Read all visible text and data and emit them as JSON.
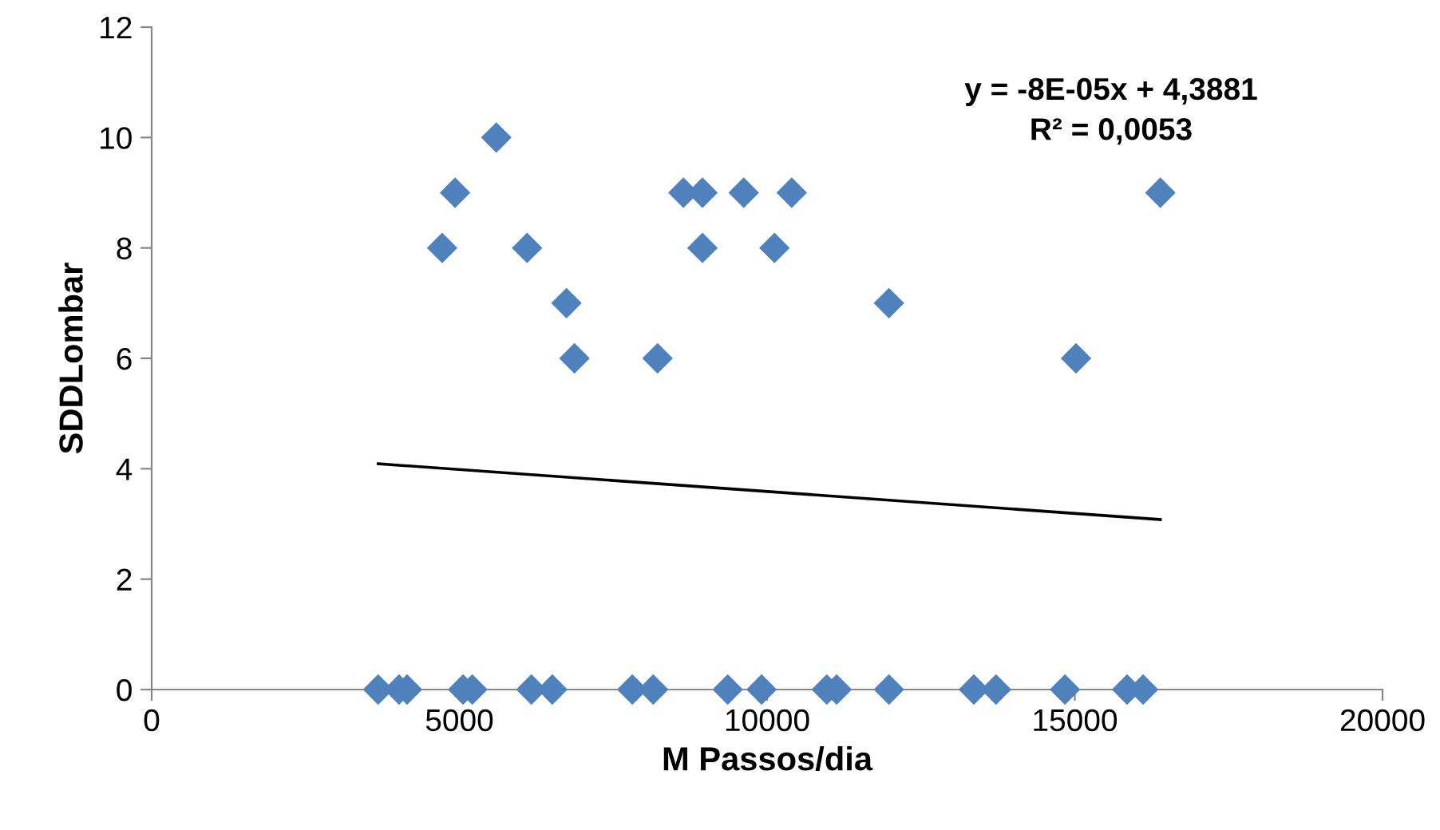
{
  "chart_data": {
    "type": "scatter",
    "xlabel": "M Passos/dia",
    "ylabel": "SDDLombar",
    "xlim": [
      0,
      20000
    ],
    "xticks": [
      0,
      5000,
      10000,
      15000,
      20000
    ],
    "ylim": [
      0,
      12
    ],
    "yticks": [
      0,
      2,
      4,
      6,
      8,
      10,
      12
    ],
    "grid": false,
    "legend": false,
    "series": [
      {
        "marker": "diamond",
        "color": "#4f81bd",
        "x": [
          4720,
          4930,
          5600,
          6100,
          6740,
          6870,
          8220,
          8640,
          8950,
          8950,
          9620,
          10120,
          10400,
          11980,
          15020,
          16390,
          3680,
          4020,
          4150,
          5060,
          5210,
          6170,
          6510,
          7810,
          8150,
          9360,
          9910,
          10970,
          11130,
          11980,
          13360,
          13720,
          14840,
          15850,
          16110
        ],
        "values": [
          8,
          9,
          10,
          8,
          7,
          6,
          6,
          9,
          9,
          8,
          9,
          8,
          9,
          7,
          6,
          9,
          0,
          0,
          0,
          0,
          0,
          0,
          0,
          0,
          0,
          0,
          0,
          0,
          0,
          0,
          0,
          0,
          0,
          0,
          0
        ]
      },
      {
        "type": "line",
        "color": "#000000",
        "line_style": "solid",
        "marker": "none",
        "x": [
          3680,
          16390
        ],
        "values": [
          4.09,
          3.08
        ]
      }
    ],
    "annotations": [
      "y = -8E-05x + 4,3881\nR² = 0,0053"
    ]
  }
}
